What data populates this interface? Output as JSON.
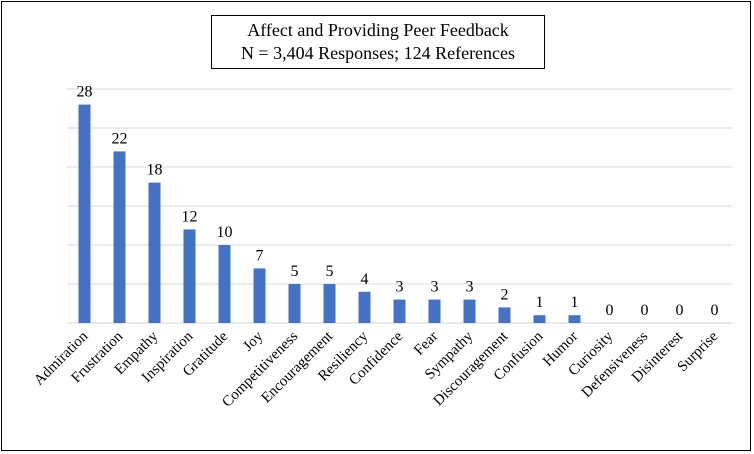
{
  "chart_data": {
    "type": "bar",
    "title": "Affect and Providing Peer Feedback",
    "subtitle": "N = 3,404 Responses; 124 References",
    "xlabel": "",
    "ylabel": "",
    "ylim": [
      0,
      30
    ],
    "grid": true,
    "legend": "none",
    "bar_color": "#4472C4",
    "grid_color": "#D9D9D9",
    "categories": [
      "Admiration",
      "Frustration",
      "Empathy",
      "Inspiration",
      "Gratitude",
      "Joy",
      "Competitiveness",
      "Encouragement",
      "Resiliency",
      "Confidence",
      "Fear",
      "Sympathy",
      "Discouragement",
      "Confusion",
      "Humor",
      "Curiosity",
      "Defensiveness",
      "Disinterest",
      "Surprise"
    ],
    "values": [
      28,
      22,
      18,
      12,
      10,
      7,
      5,
      5,
      4,
      3,
      3,
      3,
      2,
      1,
      1,
      0,
      0,
      0,
      0
    ]
  }
}
